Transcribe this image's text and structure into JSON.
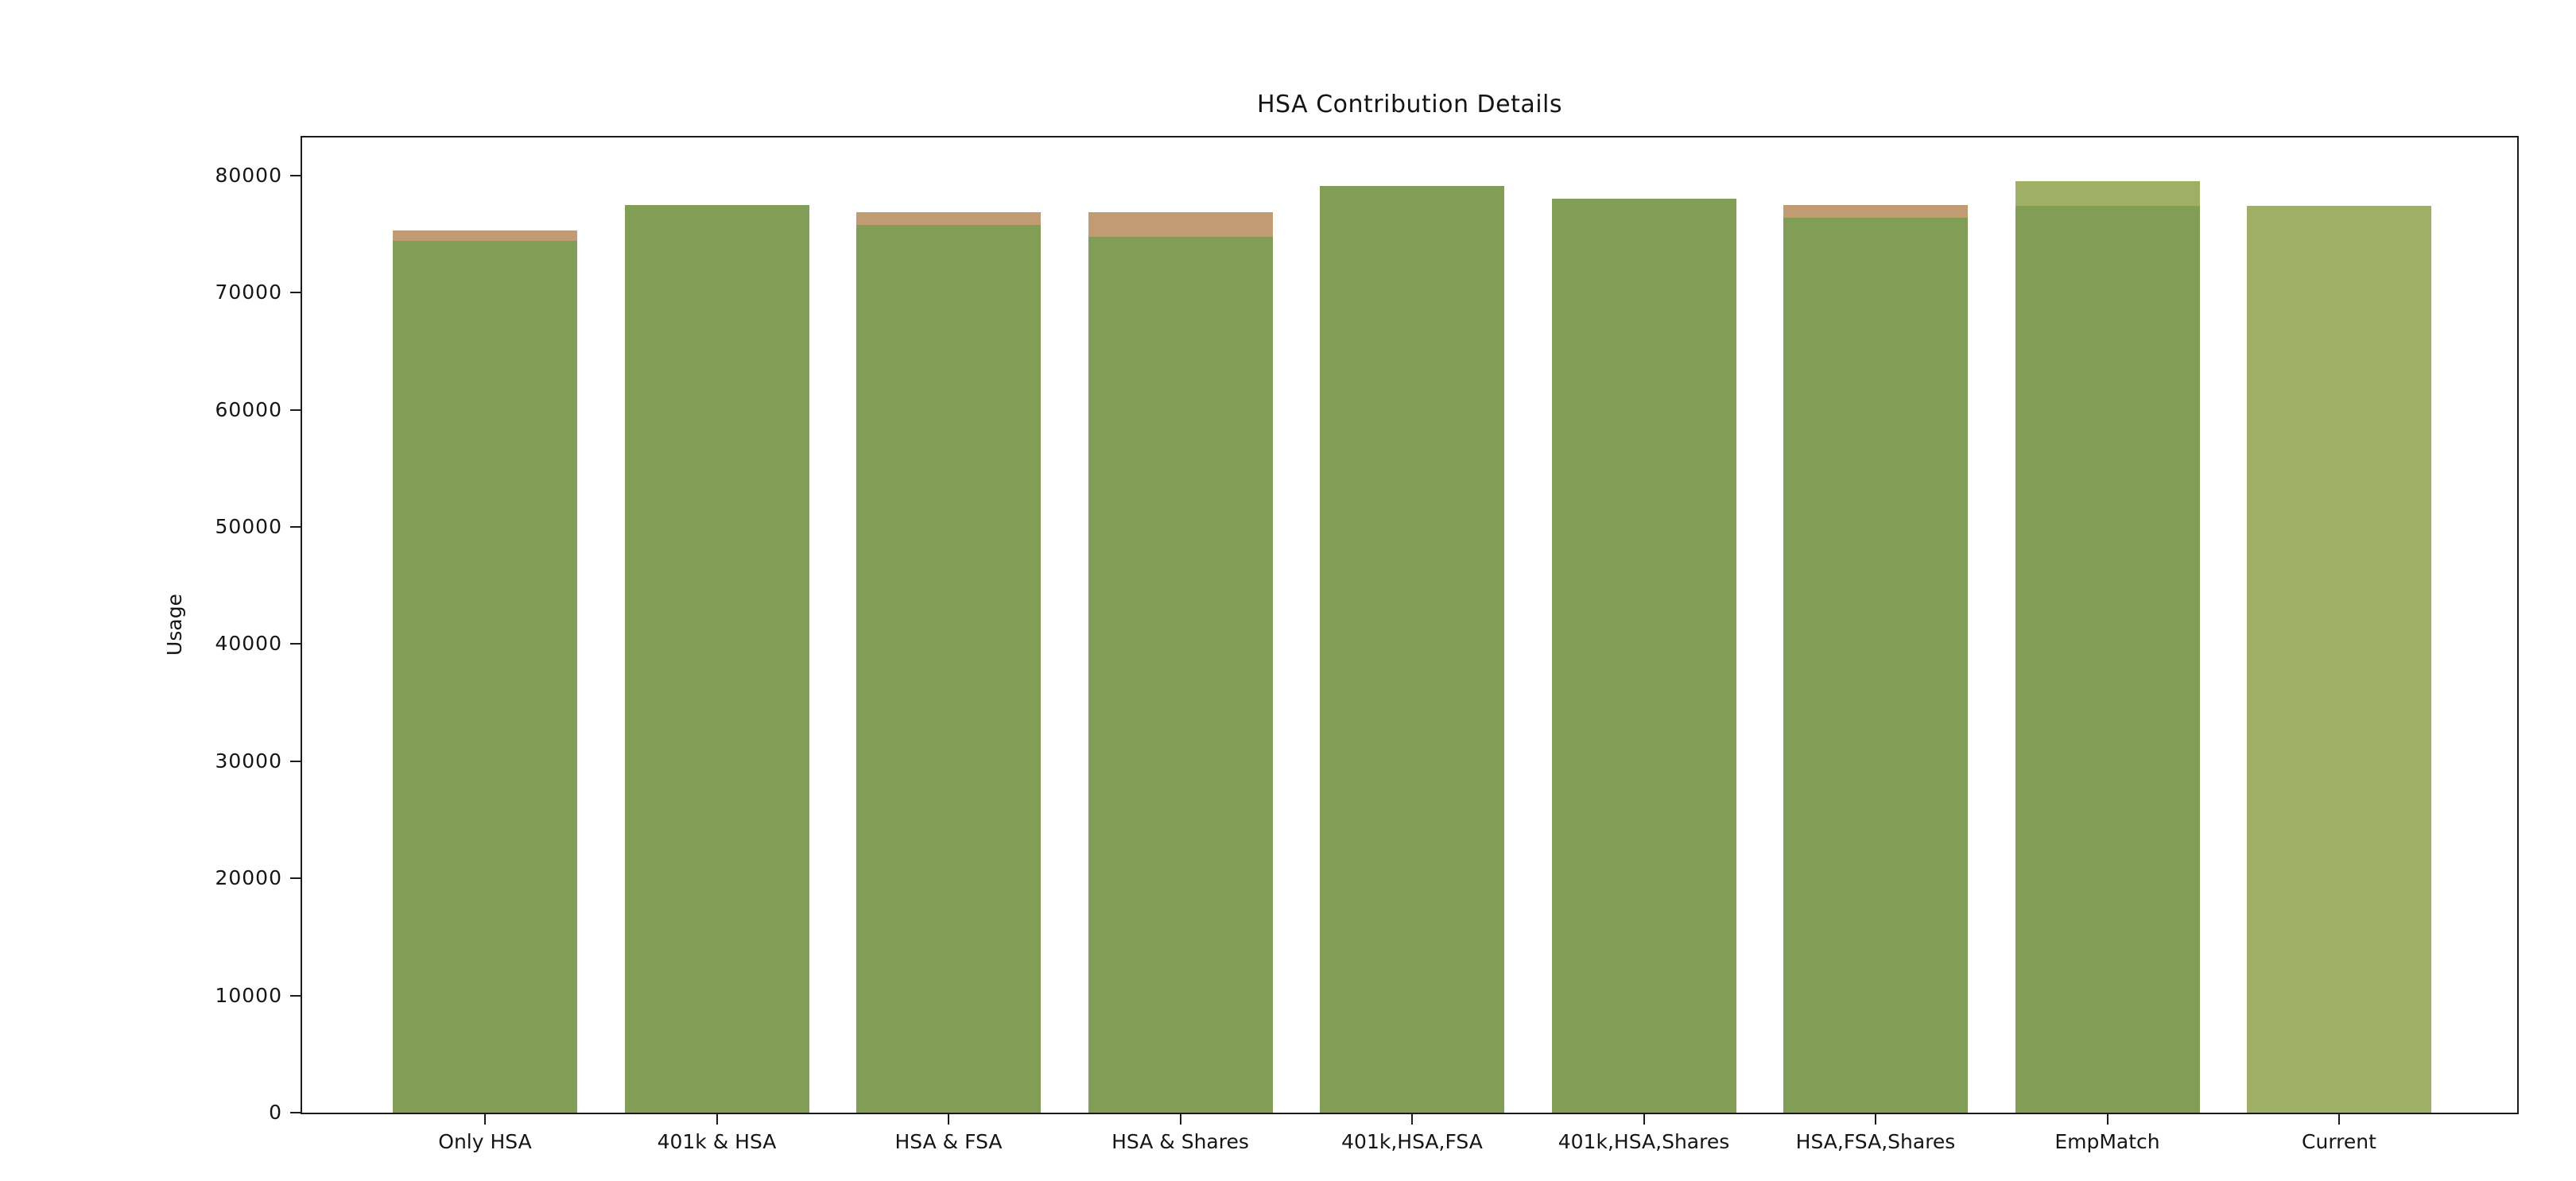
{
  "chart_data": {
    "type": "bar",
    "variant": "stacked",
    "title": "HSA Contribution Details",
    "xlabel": "",
    "ylabel": "Usage",
    "ylim": [
      0,
      83250
    ],
    "yticks": [
      0,
      10000,
      20000,
      30000,
      40000,
      50000,
      60000,
      70000,
      80000
    ],
    "grid": false,
    "legend": "none",
    "colors": {
      "green": "#819D56",
      "tan": "#C19B73",
      "light_green": "#9FAF66"
    },
    "categories": [
      "Only HSA",
      "401k & HSA",
      "HSA & FSA",
      "HSA & Shares",
      "401k,HSA,FSA",
      "401k,HSA,Shares",
      "HSA,FSA,Shares",
      "EmpMatch",
      "Current"
    ],
    "bars": [
      {
        "label": "Only HSA",
        "total": 75300,
        "segments": [
          {
            "color": "green",
            "value": 74400
          },
          {
            "color": "tan",
            "value": 900
          }
        ]
      },
      {
        "label": "401k & HSA",
        "total": 77500,
        "segments": [
          {
            "color": "green",
            "value": 77500
          }
        ]
      },
      {
        "label": "HSA & FSA",
        "total": 76900,
        "segments": [
          {
            "color": "green",
            "value": 75800
          },
          {
            "color": "tan",
            "value": 1100
          }
        ]
      },
      {
        "label": "HSA & Shares",
        "total": 76900,
        "segments": [
          {
            "color": "green",
            "value": 74800
          },
          {
            "color": "tan",
            "value": 2100
          }
        ]
      },
      {
        "label": "401k,HSA,FSA",
        "total": 79100,
        "segments": [
          {
            "color": "green",
            "value": 79100
          }
        ]
      },
      {
        "label": "401k,HSA,Shares",
        "total": 78000,
        "segments": [
          {
            "color": "green",
            "value": 78000
          }
        ]
      },
      {
        "label": "HSA,FSA,Shares",
        "total": 77500,
        "segments": [
          {
            "color": "green",
            "value": 76400
          },
          {
            "color": "tan",
            "value": 1100
          }
        ]
      },
      {
        "label": "EmpMatch",
        "total": 79500,
        "segments": [
          {
            "color": "green",
            "value": 77400
          },
          {
            "color": "light_green",
            "value": 2100
          }
        ]
      },
      {
        "label": "Current",
        "total": 77400,
        "segments": [
          {
            "color": "light_green",
            "value": 77400
          }
        ]
      }
    ]
  }
}
